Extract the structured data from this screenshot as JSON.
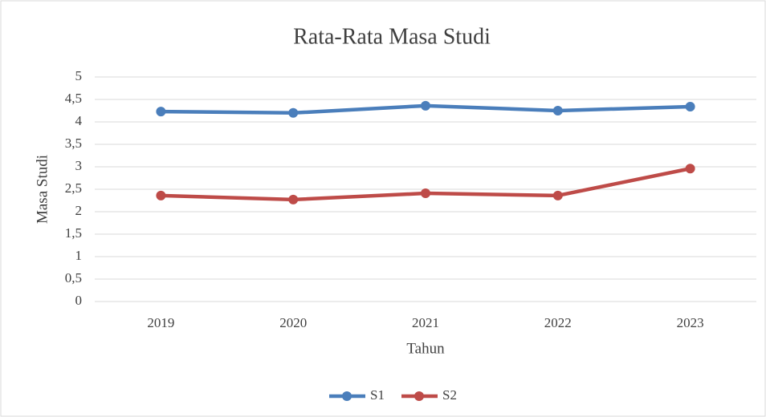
{
  "chart_data": {
    "type": "line",
    "title": "Rata-Rata Masa Studi",
    "x_label": "Tahun",
    "y_label": "Masa Studi",
    "categories": [
      "2019",
      "2020",
      "2021",
      "2022",
      "2023"
    ],
    "series": [
      {
        "name": "S1",
        "color": "#4a7ebb",
        "values": [
          4.23,
          4.2,
          4.36,
          4.25,
          4.34
        ]
      },
      {
        "name": "S2",
        "color": "#be4b48",
        "values": [
          2.36,
          2.27,
          2.41,
          2.36,
          2.96
        ]
      }
    ],
    "ylim": [
      0,
      5
    ],
    "yticks": [
      0,
      {
        "value": 0.5,
        "label": "0,5"
      },
      1,
      {
        "value": 1.5,
        "label": "1,5"
      },
      2,
      {
        "value": 2.5,
        "label": "2,5"
      },
      3,
      {
        "value": 3.5,
        "label": "3,5"
      },
      4,
      {
        "value": 4.5,
        "label": "4,5"
      },
      5
    ],
    "grid": true,
    "legend": "bottom"
  }
}
